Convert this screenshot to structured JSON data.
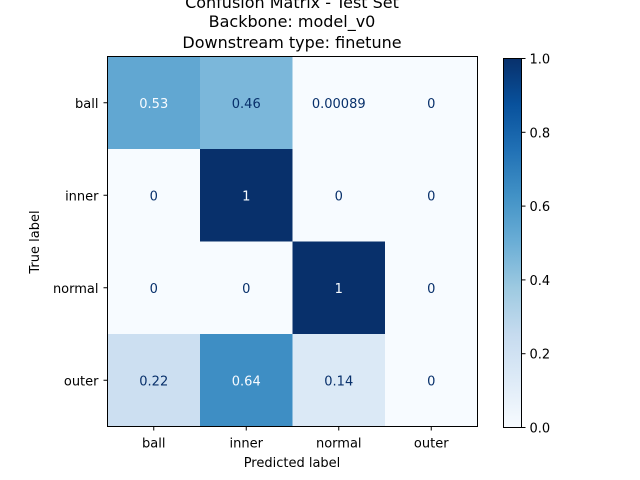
{
  "chart_data": {
    "type": "heatmap",
    "title_lines": [
      "Confusion Matrix - Test Set",
      "Backbone: model_v0",
      "Downstream type: finetune"
    ],
    "xlabel": "Predicted label",
    "ylabel": "True label",
    "x_categories": [
      "ball",
      "inner",
      "normal",
      "outer"
    ],
    "y_categories": [
      "ball",
      "inner",
      "normal",
      "outer"
    ],
    "values": [
      [
        0.53,
        0.46,
        0.00089,
        0
      ],
      [
        0,
        1,
        0,
        0
      ],
      [
        0,
        0,
        1,
        0
      ],
      [
        0.22,
        0.64,
        0.14,
        0
      ]
    ],
    "value_labels": [
      [
        "0.53",
        "0.46",
        "0.00089",
        "0"
      ],
      [
        "0",
        "1",
        "0",
        "0"
      ],
      [
        "0",
        "0",
        "1",
        "0"
      ],
      [
        "0.22",
        "0.64",
        "0.14",
        "0"
      ]
    ],
    "colormap": "Blues",
    "colorbar": {
      "range": [
        0.0,
        1.0
      ],
      "ticks": [
        0.0,
        0.2,
        0.4,
        0.6,
        0.8,
        1.0
      ],
      "tick_labels": [
        "0.0",
        "0.2",
        "0.4",
        "0.6",
        "0.8",
        "1.0"
      ]
    }
  }
}
